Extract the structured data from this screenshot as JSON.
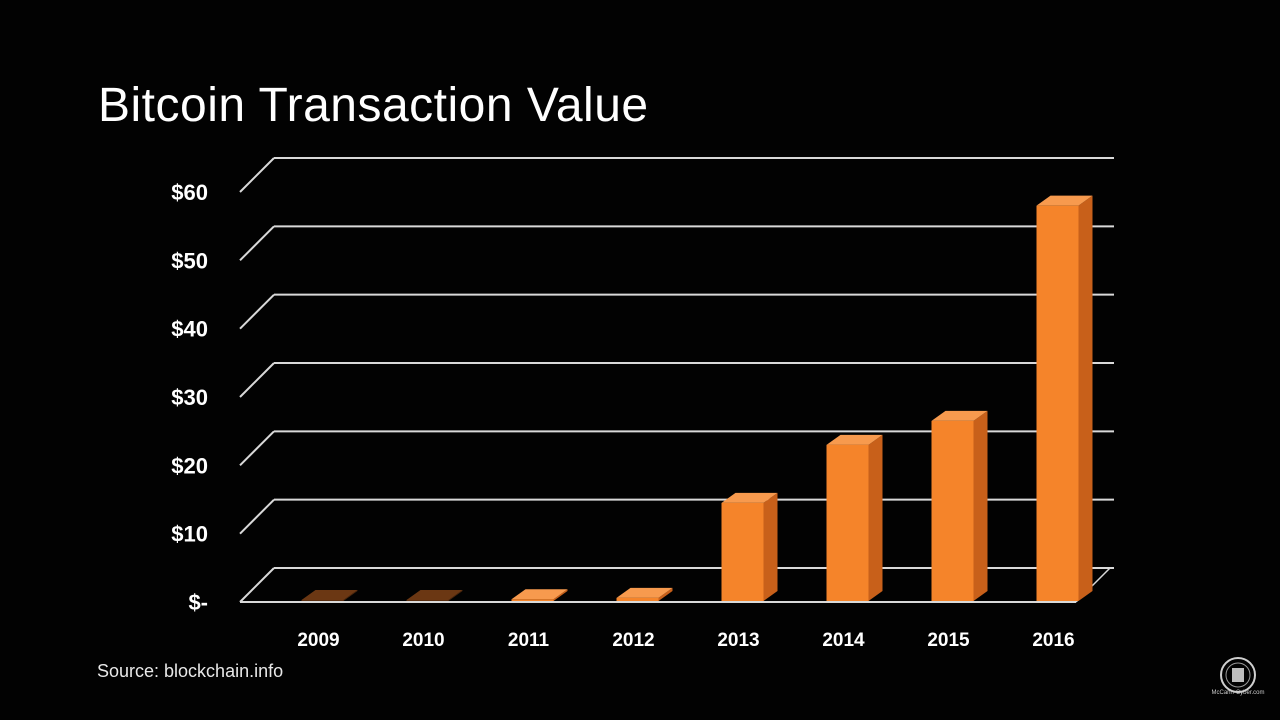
{
  "slide": {
    "title": "Bitcoin Transaction Value",
    "source": "Source: blockchain.info",
    "logo_text": "McCann-Cyber.com"
  },
  "colors": {
    "bar_front": "#f5842a",
    "bar_side": "#c8601a",
    "bar_top": "#f79a4e",
    "background": "#020202",
    "grid": "#d9d9d9",
    "text": "#ffffff"
  },
  "chart_data": {
    "type": "bar",
    "title": "Bitcoin Transaction Value",
    "categories": [
      "2009",
      "2010",
      "2011",
      "2012",
      "2013",
      "2014",
      "2015",
      "2016"
    ],
    "values": [
      0,
      0,
      0.4,
      0.6,
      14.5,
      23,
      26.5,
      58
    ],
    "ylim": [
      0,
      60
    ],
    "yticks": [
      0,
      10,
      20,
      30,
      40,
      50,
      60
    ],
    "ytick_labels": [
      "$-",
      "$10",
      "$20",
      "$30",
      "$40",
      "$50",
      "$60"
    ],
    "grid": true,
    "style": "3d-column"
  }
}
